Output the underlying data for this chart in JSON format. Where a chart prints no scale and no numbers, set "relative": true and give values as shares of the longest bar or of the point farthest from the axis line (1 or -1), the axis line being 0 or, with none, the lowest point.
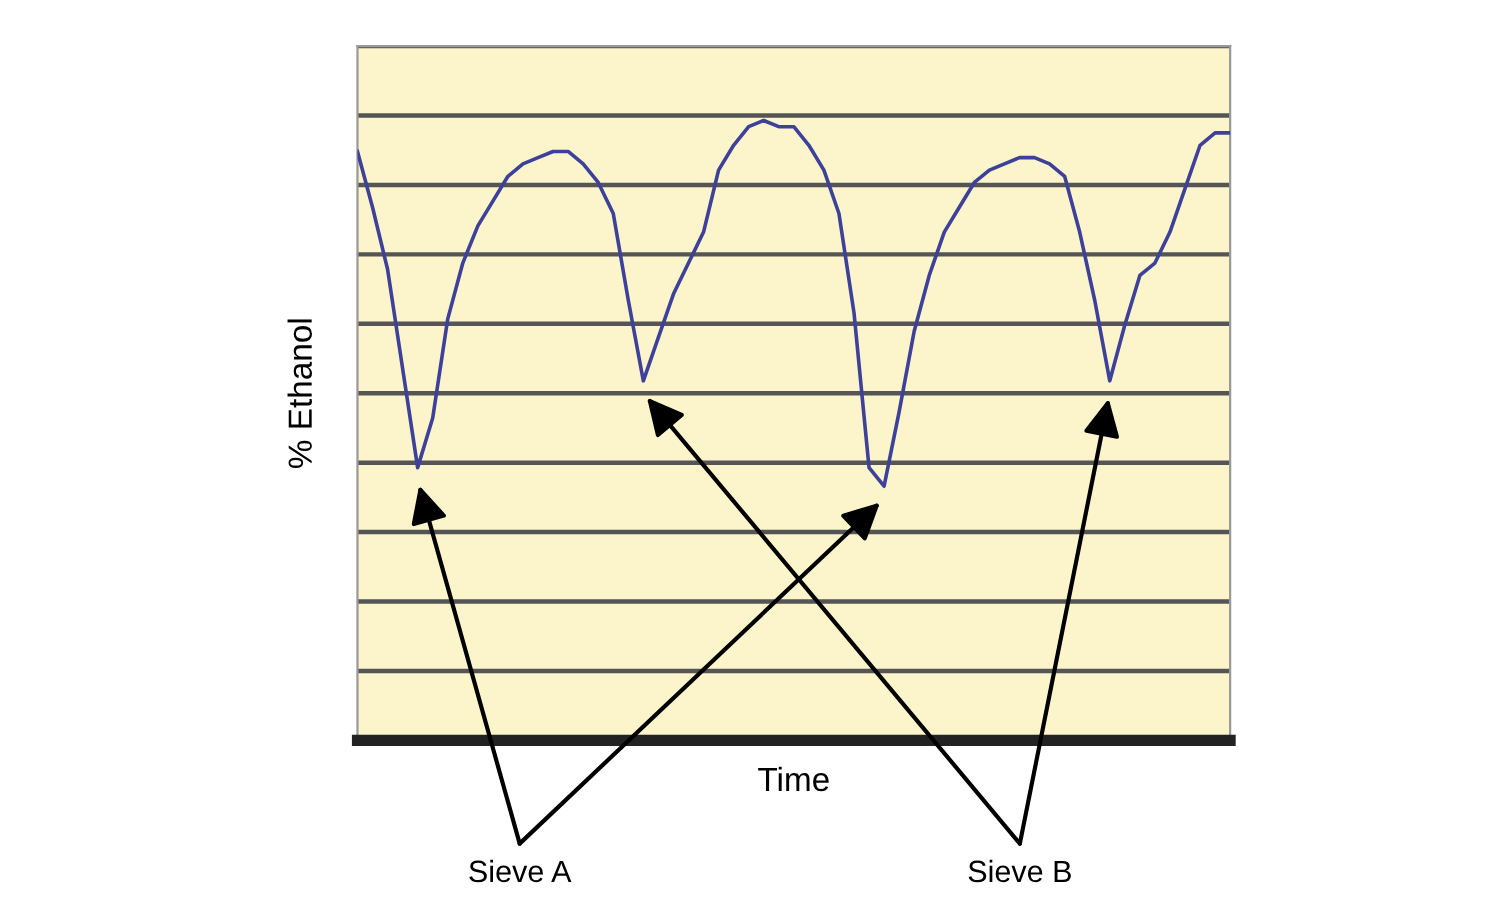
{
  "chart_data": {
    "type": "line",
    "xlabel": "Time",
    "ylabel": "% Ethanol",
    "relative": true,
    "grid": "y",
    "categories": [
      null,
      null,
      null,
      null,
      null,
      null,
      null,
      null,
      null,
      null,
      null,
      null,
      null,
      null,
      null,
      null,
      null,
      null,
      null,
      null,
      null,
      null,
      null,
      null,
      null,
      null,
      null,
      null,
      null,
      null,
      null,
      null,
      null,
      null,
      null,
      null,
      null,
      null,
      null,
      null,
      null,
      null,
      null,
      null,
      null,
      null,
      null,
      null,
      null,
      null,
      null,
      null,
      null,
      null,
      null,
      null,
      null,
      null,
      null
    ],
    "series": [
      {
        "color": "#3d4199",
        "values": [
          0.95,
          0.86,
          0.76,
          0.6,
          0.44,
          0.52,
          0.68,
          0.77,
          0.83,
          0.87,
          0.91,
          0.93,
          0.94,
          0.95,
          0.95,
          0.93,
          0.9,
          0.85,
          0.71,
          0.58,
          0.65,
          0.72,
          0.77,
          0.82,
          0.92,
          0.96,
          0.99,
          1.0,
          0.99,
          0.99,
          0.96,
          0.92,
          0.85,
          0.69,
          0.44,
          0.41,
          0.53,
          0.66,
          0.75,
          0.82,
          0.86,
          0.9,
          0.92,
          0.93,
          0.94,
          0.94,
          0.93,
          0.91,
          0.82,
          0.71,
          0.58,
          0.67,
          0.75,
          0.77,
          0.82,
          0.89,
          0.96,
          0.98,
          0.98
        ]
      }
    ],
    "annotations": [
      "Sieve A",
      "Sieve B"
    ]
  }
}
